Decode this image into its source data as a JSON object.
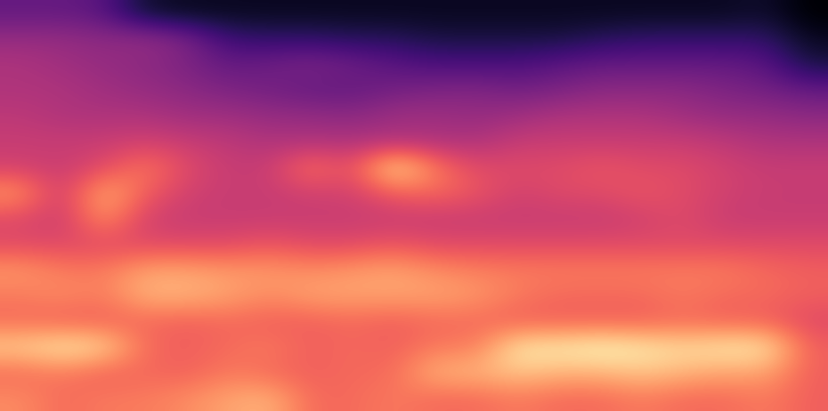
{
  "chart_data": {
    "type": "heatmap",
    "tick_labels": false,
    "cells": [
      [
        0.3,
        0.3,
        0.28,
        0.12,
        0.1,
        0.1,
        0.1,
        0.1,
        0.1,
        0.1,
        0.1,
        0.1,
        0.1,
        0.1,
        0.1,
        0.1,
        0.1,
        0.1,
        0.12,
        0.05
      ],
      [
        0.4,
        0.4,
        0.38,
        0.4,
        0.35,
        0.22,
        0.2,
        0.2,
        0.18,
        0.18,
        0.15,
        0.15,
        0.15,
        0.15,
        0.18,
        0.2,
        0.2,
        0.2,
        0.2,
        0.1
      ],
      [
        0.45,
        0.42,
        0.4,
        0.38,
        0.35,
        0.3,
        0.32,
        0.35,
        0.32,
        0.28,
        0.25,
        0.25,
        0.25,
        0.28,
        0.3,
        0.3,
        0.3,
        0.3,
        0.28,
        0.15
      ],
      [
        0.45,
        0.45,
        0.42,
        0.4,
        0.38,
        0.35,
        0.33,
        0.3,
        0.3,
        0.33,
        0.35,
        0.36,
        0.33,
        0.35,
        0.38,
        0.38,
        0.38,
        0.35,
        0.33,
        0.3
      ],
      [
        0.48,
        0.45,
        0.45,
        0.45,
        0.42,
        0.42,
        0.4,
        0.4,
        0.38,
        0.42,
        0.42,
        0.4,
        0.42,
        0.45,
        0.45,
        0.45,
        0.42,
        0.4,
        0.4,
        0.38
      ],
      [
        0.5,
        0.5,
        0.5,
        0.52,
        0.5,
        0.48,
        0.45,
        0.45,
        0.45,
        0.45,
        0.45,
        0.45,
        0.5,
        0.5,
        0.5,
        0.5,
        0.5,
        0.48,
        0.45,
        0.45
      ],
      [
        0.52,
        0.5,
        0.55,
        0.65,
        0.55,
        0.5,
        0.5,
        0.65,
        0.55,
        0.85,
        0.65,
        0.55,
        0.55,
        0.55,
        0.58,
        0.55,
        0.55,
        0.52,
        0.5,
        0.5
      ],
      [
        0.7,
        0.5,
        0.75,
        0.6,
        0.52,
        0.5,
        0.5,
        0.52,
        0.52,
        0.6,
        0.62,
        0.58,
        0.52,
        0.55,
        0.55,
        0.58,
        0.55,
        0.52,
        0.5,
        0.5
      ],
      [
        0.55,
        0.5,
        0.7,
        0.52,
        0.5,
        0.5,
        0.5,
        0.5,
        0.5,
        0.5,
        0.5,
        0.5,
        0.5,
        0.5,
        0.5,
        0.52,
        0.55,
        0.5,
        0.5,
        0.5
      ],
      [
        0.55,
        0.55,
        0.55,
        0.55,
        0.55,
        0.55,
        0.58,
        0.55,
        0.55,
        0.58,
        0.55,
        0.55,
        0.55,
        0.55,
        0.55,
        0.55,
        0.55,
        0.55,
        0.55,
        0.55
      ],
      [
        0.7,
        0.65,
        0.65,
        0.72,
        0.72,
        0.7,
        0.7,
        0.68,
        0.7,
        0.72,
        0.68,
        0.66,
        0.65,
        0.65,
        0.65,
        0.65,
        0.65,
        0.65,
        0.62,
        0.6
      ],
      [
        0.65,
        0.68,
        0.65,
        0.75,
        0.75,
        0.72,
        0.68,
        0.72,
        0.72,
        0.72,
        0.72,
        0.7,
        0.65,
        0.62,
        0.62,
        0.62,
        0.65,
        0.62,
        0.62,
        0.6
      ],
      [
        0.62,
        0.6,
        0.6,
        0.62,
        0.6,
        0.62,
        0.6,
        0.6,
        0.62,
        0.6,
        0.62,
        0.62,
        0.6,
        0.6,
        0.6,
        0.6,
        0.62,
        0.6,
        0.6,
        0.55
      ],
      [
        0.8,
        0.85,
        0.82,
        0.62,
        0.6,
        0.62,
        0.65,
        0.6,
        0.62,
        0.6,
        0.65,
        0.65,
        0.85,
        0.85,
        0.88,
        0.85,
        0.82,
        0.85,
        0.85,
        0.6
      ],
      [
        0.62,
        0.65,
        0.6,
        0.62,
        0.6,
        0.65,
        0.62,
        0.6,
        0.62,
        0.62,
        0.75,
        0.75,
        0.78,
        0.75,
        0.75,
        0.78,
        0.75,
        0.72,
        0.72,
        0.6
      ],
      [
        0.68,
        0.62,
        0.65,
        0.65,
        0.68,
        0.72,
        0.75,
        0.62,
        0.62,
        0.65,
        0.62,
        0.62,
        0.65,
        0.62,
        0.62,
        0.65,
        0.62,
        0.62,
        0.65,
        0.6
      ]
    ]
  }
}
